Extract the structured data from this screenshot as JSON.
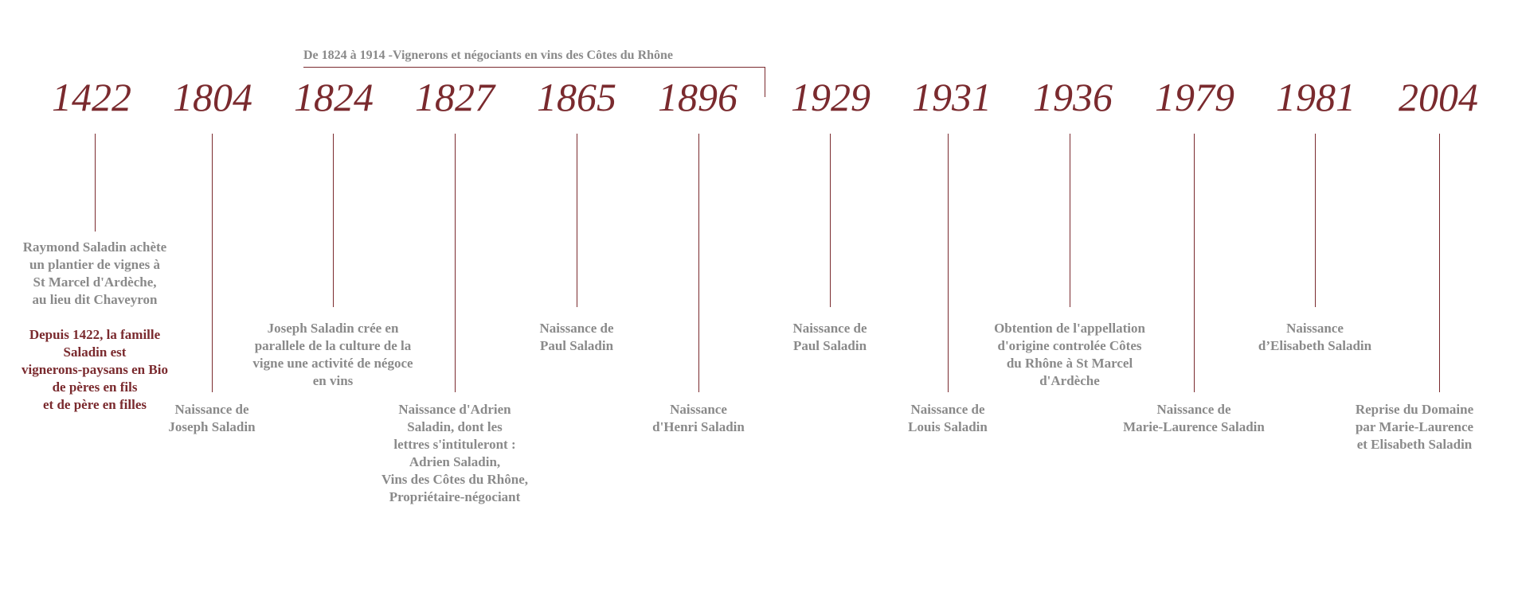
{
  "colors": {
    "accent": "#7a2a2e",
    "text_gray": "#8a8a8a",
    "background": "#ffffff"
  },
  "period": {
    "label": "De 1824 à 1914 -Vignerons et négociants en vins des Côtes du Rhône"
  },
  "years": [
    "1422",
    "1804",
    "1824",
    "1827",
    "1865",
    "1896",
    "1929",
    "1931",
    "1936",
    "1979",
    "1981",
    "2004"
  ],
  "events": {
    "e1422": "Raymond Saladin achète\nun plantier de vignes à\nSt Marcel d'Ardèche,\nau lieu dit Chaveyron",
    "e1422_family": "Depuis 1422, la famille\nSaladin est\nvignerons-paysans en Bio\nde pères en fils\net de père en filles",
    "e1804": "Naissance de\nJoseph Saladin",
    "e1824": "Joseph Saladin crée en\nparallele de la culture de la\nvigne une activité de négoce\nen vins",
    "e1827": "Naissance d'Adrien\nSaladin, dont les\nlettres s'intituleront :\nAdrien Saladin,\nVins des Côtes du Rhône,\nPropriétaire-négociant",
    "e1865": "Naissance de\nPaul Saladin",
    "e1896": "Naissance\nd'Henri Saladin",
    "e1929": "Naissance de\nPaul Saladin",
    "e1931": "Naissance de\nLouis Saladin",
    "e1936": "Obtention de l'appellation\nd'origine controlée Côtes\ndu Rhône à St Marcel\nd'Ardèche",
    "e1979": "Naissance de\nMarie-Laurence Saladin",
    "e1981": "Naissance\nd’Elisabeth Saladin",
    "e2004": "Reprise du Domaine\npar Marie-Laurence\net Elisabeth Saladin"
  }
}
